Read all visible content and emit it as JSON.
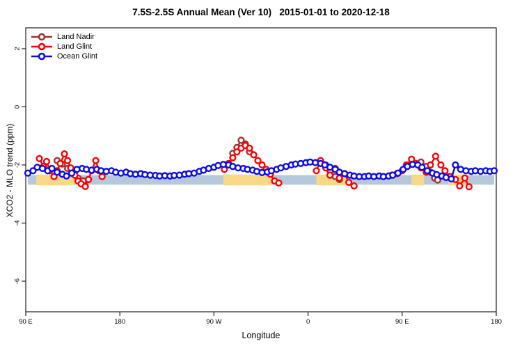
{
  "title": "7.5S-2.5S Annual Mean (Ver 10)   2015-01-01 to 2020-12-18",
  "legend": {
    "items": [
      {
        "label": "Land Nadir",
        "color": "#A13232"
      },
      {
        "label": "Land Glint",
        "color": "#FF0000"
      },
      {
        "label": "Ocean Glint",
        "color": "#0A0AEE"
      }
    ]
  },
  "chart_data": {
    "type": "line",
    "title": "7.5S-2.5S Annual Mean (Ver 10)   2015-01-01 to 2020-12-18",
    "xlabel": "Longitude",
    "ylabel": "XCO2 - MLO trend (ppm)",
    "xlim": [
      90,
      540
    ],
    "ylim": [
      -7.05,
      2.72
    ],
    "grid": false,
    "legend_position": "top-left",
    "marker": "open-circle",
    "frame_color": "#222222",
    "xticks": [
      {
        "value": 90,
        "label": "90 E"
      },
      {
        "value": 180,
        "label": "180"
      },
      {
        "value": 270,
        "label": "90 W"
      },
      {
        "value": 360,
        "label": "0"
      },
      {
        "value": 450,
        "label": "90 E"
      },
      {
        "value": 540,
        "label": "180"
      }
    ],
    "yticks": [
      {
        "value": 2,
        "label": "2"
      },
      {
        "value": 0,
        "label": "0"
      },
      {
        "value": -2,
        "label": "-2"
      },
      {
        "value": -4,
        "label": "-4"
      },
      {
        "value": -6,
        "label": "-6"
      }
    ],
    "highlight_bands": {
      "blue": {
        "color": "#B6C8DC",
        "y_range": [
          -2.68,
          -2.35
        ],
        "x_ranges": [
          [
            92,
            538
          ]
        ]
      },
      "yellow": {
        "color": "#F9D987",
        "y_range": [
          -2.7,
          -2.33
        ],
        "x_ranges": [
          [
            100,
            137
          ],
          [
            279,
            325
          ],
          [
            368,
            396
          ],
          [
            459,
            471
          ],
          [
            494,
            510
          ]
        ]
      }
    },
    "series": [
      {
        "name": "Land Nadir",
        "color": "#A13232",
        "segments": [
          [
            [
              120,
              -1.85
            ],
            [
              125,
              -1.97
            ],
            [
              130,
              -2.12
            ],
            [
              135,
              -2.3
            ],
            [
              140,
              -2.45
            ],
            [
              145,
              -2.55
            ],
            [
              150,
              -2.5
            ]
          ],
          [
            [
              288,
              -1.6
            ],
            [
              292,
              -1.4
            ],
            [
              296,
              -1.15
            ],
            [
              300,
              -1.28
            ],
            [
              304,
              -1.55
            ]
          ],
          [
            [
              377,
              -2.0
            ],
            [
              381,
              -2.2
            ],
            [
              386,
              -2.4
            ],
            [
              390,
              -2.5
            ]
          ],
          [
            [
              468,
              -1.9
            ],
            [
              473,
              -2.05
            ],
            [
              477,
              -2.25
            ],
            [
              481,
              -2.45
            ],
            [
              484,
              -2.52
            ]
          ]
        ]
      },
      {
        "name": "Land Glint",
        "color": "#FF0000",
        "segments": [
          [
            [
              103,
              -1.78
            ],
            [
              107,
              -2.05
            ],
            [
              110,
              -1.88
            ],
            [
              113,
              -2.2
            ],
            [
              117,
              -2.4
            ],
            [
              120,
              -2.2
            ],
            [
              123,
              -1.95
            ],
            [
              127,
              -1.62
            ],
            [
              130,
              -1.85
            ],
            [
              133,
              -2.1
            ],
            [
              137,
              -2.35
            ],
            [
              140,
              -2.55
            ],
            [
              143,
              -2.65
            ],
            [
              147,
              -2.74
            ],
            [
              150,
              -2.5
            ],
            [
              153,
              -2.2
            ],
            [
              157,
              -1.85
            ],
            [
              160,
              -2.2
            ],
            [
              163,
              -2.4
            ]
          ],
          [
            [
              280,
              -2.15
            ],
            [
              284,
              -1.95
            ],
            [
              288,
              -1.75
            ],
            [
              292,
              -1.55
            ],
            [
              296,
              -1.42
            ],
            [
              300,
              -1.33
            ],
            [
              304,
              -1.42
            ],
            [
              308,
              -1.65
            ],
            [
              312,
              -1.85
            ],
            [
              316,
              -2.0
            ],
            [
              320,
              -2.15
            ],
            [
              324,
              -2.32
            ],
            [
              328,
              -2.55
            ],
            [
              332,
              -2.62
            ]
          ],
          [
            [
              368,
              -2.2
            ],
            [
              372,
              -1.85
            ],
            [
              377,
              -2.1
            ],
            [
              381,
              -2.35
            ],
            [
              386,
              -2.12
            ],
            [
              390,
              -2.45
            ],
            [
              395,
              -2.3
            ],
            [
              399,
              -2.6
            ],
            [
              404,
              -2.72
            ]
          ],
          [
            [
              440,
              -2.35
            ],
            [
              445,
              -2.3
            ],
            [
              450,
              -2.2
            ],
            [
              454,
              -2.0
            ],
            [
              459,
              -1.8
            ],
            [
              463,
              -1.95
            ],
            [
              468,
              -2.1
            ],
            [
              473,
              -2.25
            ],
            [
              477,
              -2.0
            ],
            [
              482,
              -1.7
            ],
            [
              487,
              -2.0
            ],
            [
              491,
              -2.2
            ],
            [
              496,
              -2.4
            ],
            [
              501,
              -2.5
            ],
            [
              505,
              -2.72
            ],
            [
              510,
              -2.45
            ],
            [
              514,
              -2.75
            ]
          ]
        ]
      },
      {
        "name": "Ocean Glint",
        "color": "#0A0AEE",
        "segments": [
          [
            [
              92,
              -2.28
            ],
            [
              97,
              -2.2
            ],
            [
              101,
              -2.08
            ],
            [
              106,
              -2.12
            ],
            [
              111,
              -2.2
            ],
            [
              115,
              -2.12
            ],
            [
              120,
              -2.25
            ],
            [
              125,
              -2.32
            ],
            [
              129,
              -2.38
            ],
            [
              134,
              -2.28
            ],
            [
              139,
              -2.15
            ],
            [
              144,
              -2.12
            ],
            [
              148,
              -2.15
            ],
            [
              153,
              -2.18
            ],
            [
              158,
              -2.15
            ],
            [
              162,
              -2.2
            ],
            [
              167,
              -2.22
            ],
            [
              172,
              -2.2
            ],
            [
              176,
              -2.25
            ],
            [
              181,
              -2.28
            ],
            [
              186,
              -2.25
            ],
            [
              190,
              -2.3
            ],
            [
              195,
              -2.32
            ],
            [
              200,
              -2.3
            ],
            [
              204,
              -2.33
            ],
            [
              209,
              -2.35
            ],
            [
              214,
              -2.36
            ],
            [
              218,
              -2.38
            ],
            [
              223,
              -2.37
            ],
            [
              228,
              -2.38
            ],
            [
              232,
              -2.36
            ],
            [
              237,
              -2.35
            ],
            [
              242,
              -2.32
            ],
            [
              246,
              -2.3
            ],
            [
              251,
              -2.28
            ],
            [
              256,
              -2.22
            ],
            [
              260,
              -2.18
            ],
            [
              265,
              -2.12
            ],
            [
              270,
              -2.08
            ],
            [
              274,
              -2.02
            ],
            [
              279,
              -1.98
            ],
            [
              284,
              -2.0
            ],
            [
              288,
              -2.05
            ],
            [
              293,
              -2.1
            ],
            [
              298,
              -2.12
            ],
            [
              302,
              -2.15
            ],
            [
              307,
              -2.18
            ],
            [
              311,
              -2.22
            ],
            [
              316,
              -2.26
            ],
            [
              321,
              -2.24
            ],
            [
              325,
              -2.2
            ],
            [
              330,
              -2.15
            ],
            [
              334,
              -2.1
            ],
            [
              339,
              -2.05
            ],
            [
              344,
              -2.0
            ],
            [
              348,
              -1.97
            ],
            [
              353,
              -1.95
            ],
            [
              358,
              -1.92
            ],
            [
              362,
              -1.9
            ],
            [
              367,
              -1.92
            ],
            [
              372,
              -1.95
            ],
            [
              376,
              -2.0
            ],
            [
              381,
              -2.08
            ],
            [
              386,
              -2.15
            ],
            [
              390,
              -2.25
            ],
            [
              395,
              -2.3
            ],
            [
              400,
              -2.35
            ],
            [
              404,
              -2.38
            ],
            [
              409,
              -2.4
            ],
            [
              414,
              -2.4
            ],
            [
              418,
              -2.38
            ],
            [
              423,
              -2.4
            ],
            [
              428,
              -2.38
            ],
            [
              432,
              -2.4
            ],
            [
              437,
              -2.38
            ],
            [
              441,
              -2.35
            ],
            [
              446,
              -2.28
            ],
            [
              451,
              -2.15
            ],
            [
              455,
              -2.05
            ],
            [
              460,
              -1.98
            ],
            [
              465,
              -2.0
            ],
            [
              469,
              -2.08
            ],
            [
              474,
              -2.2
            ],
            [
              479,
              -2.28
            ],
            [
              483,
              -2.33
            ],
            [
              488,
              -2.38
            ],
            [
              492,
              -2.43
            ],
            [
              497,
              -2.48
            ],
            [
              501,
              -2.0
            ],
            [
              506,
              -2.15
            ],
            [
              511,
              -2.2
            ],
            [
              516,
              -2.22
            ],
            [
              520,
              -2.2
            ],
            [
              525,
              -2.22
            ],
            [
              530,
              -2.2
            ],
            [
              534,
              -2.22
            ],
            [
              538,
              -2.2
            ]
          ]
        ]
      }
    ]
  }
}
